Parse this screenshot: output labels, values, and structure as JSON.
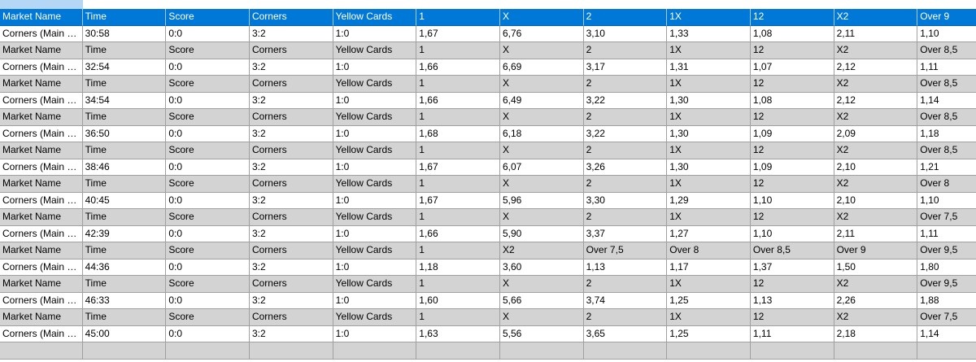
{
  "header": [
    "Market Name",
    "Time",
    "Score",
    "Corners",
    "Yellow Cards",
    "1",
    "X",
    "2",
    "1X",
    "12",
    "X2",
    "Over 9"
  ],
  "rows": [
    {
      "style": "white",
      "cells": [
        "Corners (Main Ga...",
        "30:58",
        "0:0",
        "3:2",
        "1:0",
        "1,67",
        "6,76",
        "3,10",
        "1,33",
        "1,08",
        "2,11",
        "1,10"
      ]
    },
    {
      "style": "gray",
      "cells": [
        "Market Name",
        "Time",
        "Score",
        "Corners",
        "Yellow Cards",
        "1",
        "X",
        "2",
        "1X",
        "12",
        "X2",
        "Over 8,5"
      ]
    },
    {
      "style": "white",
      "cells": [
        "Corners (Main Ga...",
        "32:54",
        "0:0",
        "3:2",
        "1:0",
        "1,66",
        "6,69",
        "3,17",
        "1,31",
        "1,07",
        "2,12",
        "1,11"
      ]
    },
    {
      "style": "gray",
      "cells": [
        "Market Name",
        "Time",
        "Score",
        "Corners",
        "Yellow Cards",
        "1",
        "X",
        "2",
        "1X",
        "12",
        "X2",
        "Over 8,5"
      ]
    },
    {
      "style": "white",
      "cells": [
        "Corners (Main Ga...",
        "34:54",
        "0:0",
        "3:2",
        "1:0",
        "1,66",
        "6,49",
        "3,22",
        "1,30",
        "1,08",
        "2,12",
        "1,14"
      ]
    },
    {
      "style": "gray",
      "cells": [
        "Market Name",
        "Time",
        "Score",
        "Corners",
        "Yellow Cards",
        "1",
        "X",
        "2",
        "1X",
        "12",
        "X2",
        "Over 8,5"
      ]
    },
    {
      "style": "white",
      "cells": [
        "Corners (Main Ga...",
        "36:50",
        "0:0",
        "3:2",
        "1:0",
        "1,68",
        "6,18",
        "3,22",
        "1,30",
        "1,09",
        "2,09",
        "1,18"
      ]
    },
    {
      "style": "gray",
      "cells": [
        "Market Name",
        "Time",
        "Score",
        "Corners",
        "Yellow Cards",
        "1",
        "X",
        "2",
        "1X",
        "12",
        "X2",
        "Over 8,5"
      ]
    },
    {
      "style": "white",
      "cells": [
        "Corners (Main Ga...",
        "38:46",
        "0:0",
        "3:2",
        "1:0",
        "1,67",
        "6,07",
        "3,26",
        "1,30",
        "1,09",
        "2,10",
        "1,21"
      ]
    },
    {
      "style": "gray",
      "cells": [
        "Market Name",
        "Time",
        "Score",
        "Corners",
        "Yellow Cards",
        "1",
        "X",
        "2",
        "1X",
        "12",
        "X2",
        "Over 8"
      ]
    },
    {
      "style": "white",
      "cells": [
        "Corners (Main Ga...",
        "40:45",
        "0:0",
        "3:2",
        "1:0",
        "1,67",
        "5,96",
        "3,30",
        "1,29",
        "1,10",
        "2,10",
        "1,10"
      ]
    },
    {
      "style": "gray",
      "cells": [
        "Market Name",
        "Time",
        "Score",
        "Corners",
        "Yellow Cards",
        "1",
        "X",
        "2",
        "1X",
        "12",
        "X2",
        "Over 7,5"
      ]
    },
    {
      "style": "white",
      "cells": [
        "Corners (Main Ga...",
        "42:39",
        "0:0",
        "3:2",
        "1:0",
        "1,66",
        "5,90",
        "3,37",
        "1,27",
        "1,10",
        "2,11",
        "1,11"
      ]
    },
    {
      "style": "gray",
      "cells": [
        "Market Name",
        "Time",
        "Score",
        "Corners",
        "Yellow Cards",
        "1",
        "X2",
        "Over 7,5",
        "Over 8",
        "Over 8,5",
        "Over 9",
        "Over 9,5"
      ]
    },
    {
      "style": "white",
      "cells": [
        "Corners (Main Ga...",
        "44:36",
        "0:0",
        "3:2",
        "1:0",
        "1,18",
        "3,60",
        "1,13",
        "1,17",
        "1,37",
        "1,50",
        "1,80"
      ]
    },
    {
      "style": "gray",
      "cells": [
        "Market Name",
        "Time",
        "Score",
        "Corners",
        "Yellow Cards",
        "1",
        "X",
        "2",
        "1X",
        "12",
        "X2",
        "Over 9,5"
      ]
    },
    {
      "style": "white",
      "cells": [
        "Corners (Main Ga...",
        "46:33",
        "0:0",
        "3:2",
        "1:0",
        "1,60",
        "5,66",
        "3,74",
        "1,25",
        "1,13",
        "2,26",
        "1,88"
      ]
    },
    {
      "style": "gray",
      "cells": [
        "Market Name",
        "Time",
        "Score",
        "Corners",
        "Yellow Cards",
        "1",
        "X",
        "2",
        "1X",
        "12",
        "X2",
        "Over 7,5"
      ]
    },
    {
      "style": "white",
      "cells": [
        "Corners (Main Ga...",
        "45:00",
        "0:0",
        "3:2",
        "1:0",
        "1,63",
        "5,56",
        "3,65",
        "1,25",
        "1,11",
        "2,18",
        "1,14"
      ]
    }
  ],
  "colors": {
    "header_bg": "#0078d7",
    "alt_row_bg": "#d3d3d3",
    "grid_line": "#a0a0a0",
    "selection": "#b4d7f5"
  }
}
